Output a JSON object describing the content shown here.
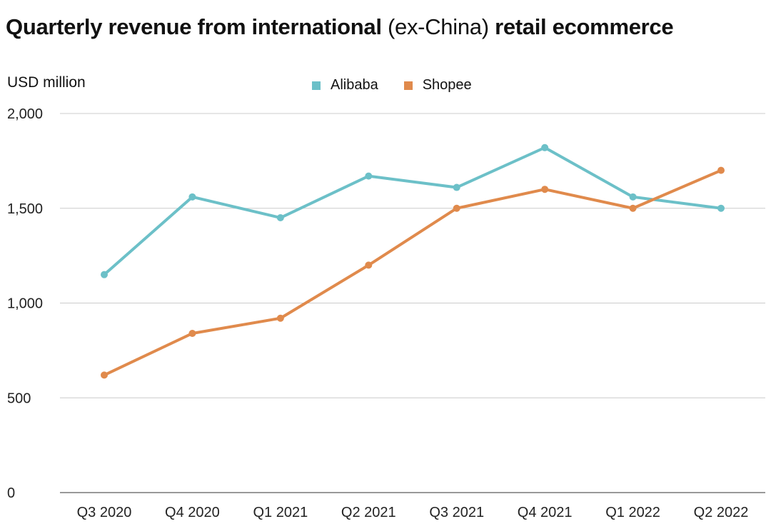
{
  "chart_data": {
    "type": "line",
    "title_parts": [
      "Quarterly revenue from international",
      "(ex-China)",
      "retail ecommerce"
    ],
    "ylabel": "USD million",
    "xlabel": "",
    "categories": [
      "Q3 2020",
      "Q4 2020",
      "Q1 2021",
      "Q2 2021",
      "Q3 2021",
      "Q4 2021",
      "Q1 2022",
      "Q2 2022"
    ],
    "ylim": [
      0,
      2000
    ],
    "yticks": [
      0,
      500,
      1000,
      1500,
      2000
    ],
    "ytick_labels": [
      "0",
      "500",
      "1,000",
      "1,500",
      "2,000"
    ],
    "grid": true,
    "legend_position": "top-center",
    "series": [
      {
        "name": "Alibaba",
        "color": "#6cc0c8",
        "values": [
          1150,
          1560,
          1450,
          1670,
          1610,
          1820,
          1560,
          1500
        ]
      },
      {
        "name": "Shopee",
        "color": "#e08a4c",
        "values": [
          620,
          840,
          920,
          1200,
          1500,
          1600,
          1500,
          1700
        ]
      }
    ]
  }
}
